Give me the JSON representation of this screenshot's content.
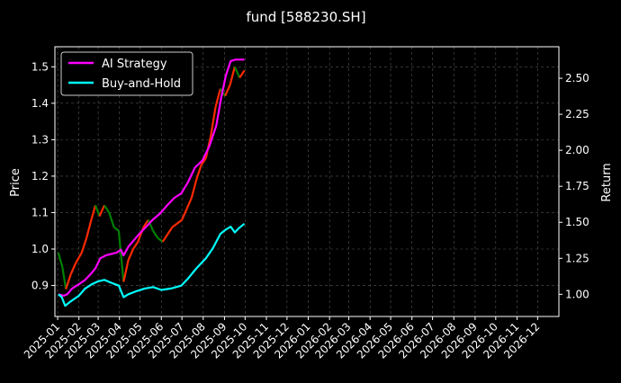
{
  "chart_data": {
    "type": "line",
    "title": "fund [588230.SH]",
    "ylabel_left": "Price",
    "ylabel_right": "Return",
    "x_tick_labels": [
      "2025-01",
      "2025-02",
      "2025-03",
      "2025-04",
      "2025-05",
      "2025-06",
      "2025-07",
      "2025-08",
      "2025-09",
      "2025-10",
      "2025-11",
      "2025-12",
      "2026-01",
      "2026-02",
      "2026-03",
      "2026-04",
      "2026-05",
      "2026-06",
      "2026-07",
      "2026-08",
      "2026-09",
      "2026-10",
      "2026-11",
      "2026-12"
    ],
    "xlim": [
      "2024-12-28",
      "2027-01-01"
    ],
    "ylim_left": [
      0.815,
      1.555
    ],
    "ylim_right": [
      0.846,
      2.719
    ],
    "y_ticks_left": [
      "0.9",
      "1.0",
      "1.1",
      "1.2",
      "1.3",
      "1.4",
      "1.5"
    ],
    "y_ticks_right": [
      "1.00",
      "1.25",
      "1.50",
      "1.75",
      "2.00",
      "2.25",
      "2.50"
    ],
    "grid": true,
    "legend_position": "top-left",
    "colors": {
      "ai_strategy": "#ff00ff",
      "buy_and_hold": "#00ffff",
      "candle_up": "#ff2a00",
      "candle_down": "#008000",
      "background": "#000000",
      "grid": "#555555",
      "text": "#ffffff"
    },
    "candle_segments": [
      {
        "x": "2025-01-02",
        "y": 0.99
      },
      {
        "x": "2025-01-08",
        "y": 0.95
      },
      {
        "x": "2025-01-13",
        "y": 0.89
      },
      {
        "x": "2025-01-20",
        "y": 0.93
      },
      {
        "x": "2025-01-27",
        "y": 0.96
      },
      {
        "x": "2025-02-05",
        "y": 0.99
      },
      {
        "x": "2025-02-12",
        "y": 1.03
      },
      {
        "x": "2025-02-19",
        "y": 1.08
      },
      {
        "x": "2025-02-25",
        "y": 1.12
      },
      {
        "x": "2025-03-03",
        "y": 1.09
      },
      {
        "x": "2025-03-10",
        "y": 1.12
      },
      {
        "x": "2025-03-17",
        "y": 1.1
      },
      {
        "x": "2025-03-24",
        "y": 1.06
      },
      {
        "x": "2025-03-31",
        "y": 1.05
      },
      {
        "x": "2025-04-07",
        "y": 0.91
      },
      {
        "x": "2025-04-14",
        "y": 0.97
      },
      {
        "x": "2025-04-21",
        "y": 1.0
      },
      {
        "x": "2025-04-28",
        "y": 1.02
      },
      {
        "x": "2025-05-06",
        "y": 1.06
      },
      {
        "x": "2025-05-13",
        "y": 1.08
      },
      {
        "x": "2025-05-20",
        "y": 1.05
      },
      {
        "x": "2025-05-27",
        "y": 1.03
      },
      {
        "x": "2025-06-03",
        "y": 1.02
      },
      {
        "x": "2025-06-10",
        "y": 1.04
      },
      {
        "x": "2025-06-17",
        "y": 1.06
      },
      {
        "x": "2025-06-24",
        "y": 1.07
      },
      {
        "x": "2025-07-01",
        "y": 1.08
      },
      {
        "x": "2025-07-08",
        "y": 1.11
      },
      {
        "x": "2025-07-15",
        "y": 1.14
      },
      {
        "x": "2025-07-22",
        "y": 1.19
      },
      {
        "x": "2025-07-29",
        "y": 1.23
      },
      {
        "x": "2025-08-05",
        "y": 1.25
      },
      {
        "x": "2025-08-12",
        "y": 1.31
      },
      {
        "x": "2025-08-19",
        "y": 1.39
      },
      {
        "x": "2025-08-26",
        "y": 1.44
      },
      {
        "x": "2025-09-02",
        "y": 1.42
      },
      {
        "x": "2025-09-09",
        "y": 1.45
      },
      {
        "x": "2025-09-16",
        "y": 1.5
      },
      {
        "x": "2025-09-23",
        "y": 1.47
      },
      {
        "x": "2025-09-30",
        "y": 1.49
      }
    ],
    "series": [
      {
        "name": "AI Strategy",
        "axis": "right",
        "points": [
          {
            "x": "2025-01-02",
            "y": 1.0
          },
          {
            "x": "2025-01-10",
            "y": 0.99
          },
          {
            "x": "2025-01-15",
            "y": 1.0
          },
          {
            "x": "2025-01-22",
            "y": 1.04
          },
          {
            "x": "2025-02-01",
            "y": 1.07
          },
          {
            "x": "2025-02-10",
            "y": 1.1
          },
          {
            "x": "2025-02-18",
            "y": 1.14
          },
          {
            "x": "2025-02-25",
            "y": 1.18
          },
          {
            "x": "2025-03-04",
            "y": 1.25
          },
          {
            "x": "2025-03-12",
            "y": 1.27
          },
          {
            "x": "2025-03-20",
            "y": 1.28
          },
          {
            "x": "2025-03-28",
            "y": 1.29
          },
          {
            "x": "2025-04-03",
            "y": 1.31
          },
          {
            "x": "2025-04-07",
            "y": 1.27
          },
          {
            "x": "2025-04-14",
            "y": 1.33
          },
          {
            "x": "2025-04-21",
            "y": 1.37
          },
          {
            "x": "2025-04-30",
            "y": 1.42
          },
          {
            "x": "2025-05-10",
            "y": 1.47
          },
          {
            "x": "2025-05-20",
            "y": 1.52
          },
          {
            "x": "2025-05-30",
            "y": 1.56
          },
          {
            "x": "2025-06-10",
            "y": 1.62
          },
          {
            "x": "2025-06-20",
            "y": 1.67
          },
          {
            "x": "2025-06-30",
            "y": 1.7
          },
          {
            "x": "2025-07-10",
            "y": 1.78
          },
          {
            "x": "2025-07-20",
            "y": 1.88
          },
          {
            "x": "2025-07-31",
            "y": 1.93
          },
          {
            "x": "2025-08-10",
            "y": 2.03
          },
          {
            "x": "2025-08-20",
            "y": 2.17
          },
          {
            "x": "2025-08-27",
            "y": 2.36
          },
          {
            "x": "2025-09-03",
            "y": 2.52
          },
          {
            "x": "2025-09-10",
            "y": 2.62
          },
          {
            "x": "2025-09-17",
            "y": 2.63
          },
          {
            "x": "2025-09-30",
            "y": 2.63
          }
        ]
      },
      {
        "name": "Buy-and-Hold",
        "axis": "right",
        "points": [
          {
            "x": "2025-01-02",
            "y": 1.0
          },
          {
            "x": "2025-01-07",
            "y": 0.98
          },
          {
            "x": "2025-01-12",
            "y": 0.92
          },
          {
            "x": "2025-01-20",
            "y": 0.95
          },
          {
            "x": "2025-02-01",
            "y": 0.99
          },
          {
            "x": "2025-02-10",
            "y": 1.04
          },
          {
            "x": "2025-02-20",
            "y": 1.07
          },
          {
            "x": "2025-03-01",
            "y": 1.09
          },
          {
            "x": "2025-03-10",
            "y": 1.1
          },
          {
            "x": "2025-03-20",
            "y": 1.08
          },
          {
            "x": "2025-03-31",
            "y": 1.06
          },
          {
            "x": "2025-04-07",
            "y": 0.98
          },
          {
            "x": "2025-04-14",
            "y": 1.0
          },
          {
            "x": "2025-04-25",
            "y": 1.02
          },
          {
            "x": "2025-05-08",
            "y": 1.04
          },
          {
            "x": "2025-05-20",
            "y": 1.05
          },
          {
            "x": "2025-06-01",
            "y": 1.03
          },
          {
            "x": "2025-06-15",
            "y": 1.04
          },
          {
            "x": "2025-06-30",
            "y": 1.06
          },
          {
            "x": "2025-07-10",
            "y": 1.11
          },
          {
            "x": "2025-07-22",
            "y": 1.18
          },
          {
            "x": "2025-08-05",
            "y": 1.25
          },
          {
            "x": "2025-08-15",
            "y": 1.32
          },
          {
            "x": "2025-08-26",
            "y": 1.42
          },
          {
            "x": "2025-09-03",
            "y": 1.45
          },
          {
            "x": "2025-09-10",
            "y": 1.47
          },
          {
            "x": "2025-09-16",
            "y": 1.43
          },
          {
            "x": "2025-09-22",
            "y": 1.46
          },
          {
            "x": "2025-09-30",
            "y": 1.49
          }
        ]
      }
    ]
  }
}
